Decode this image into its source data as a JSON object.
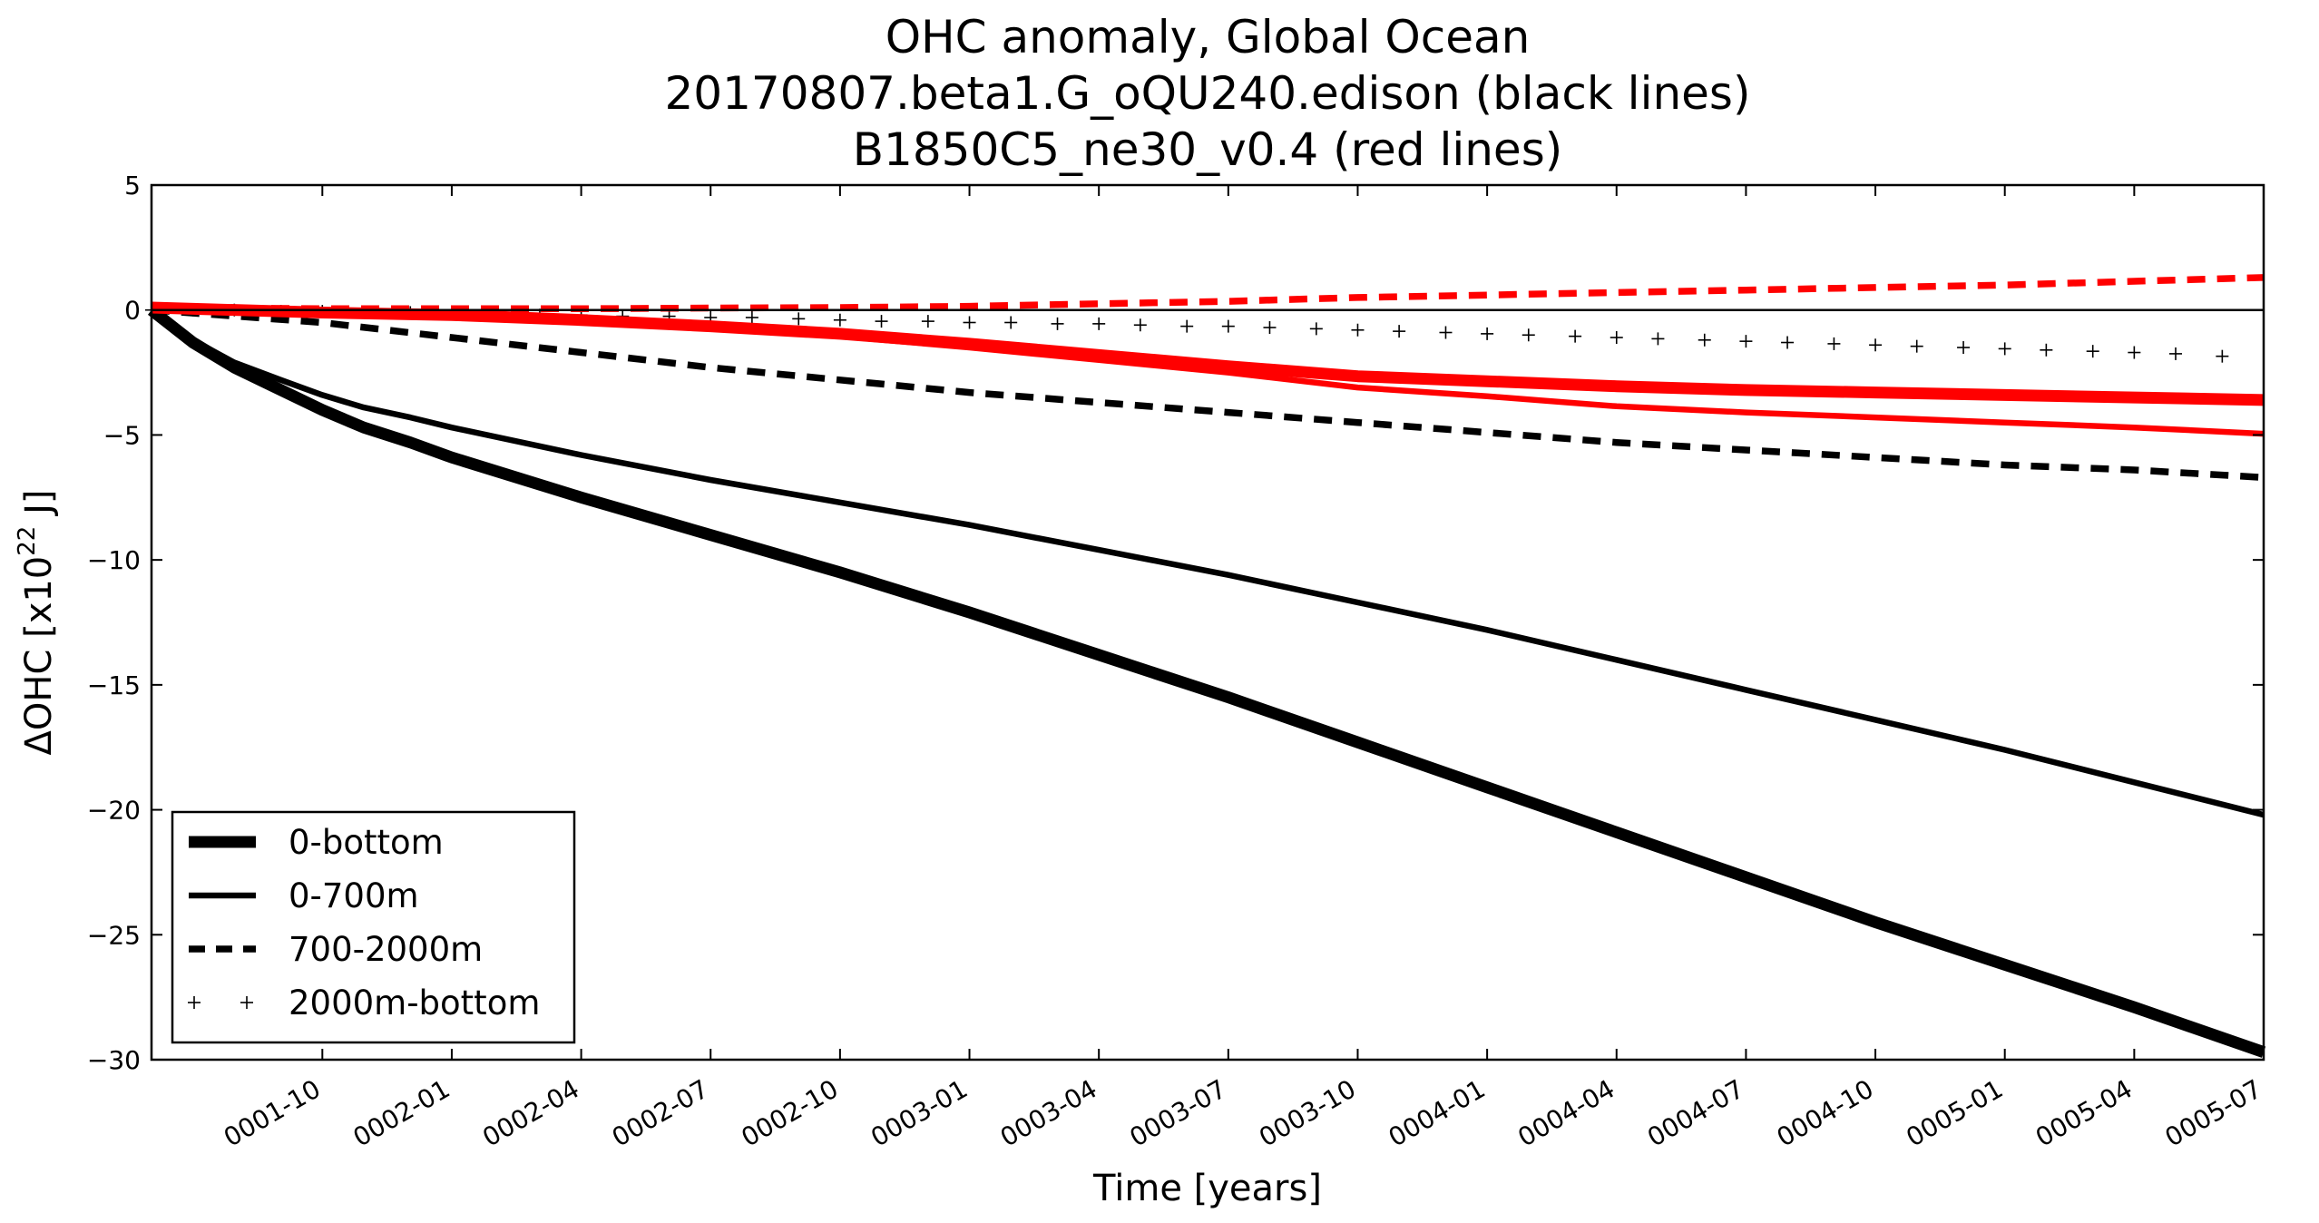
{
  "chart_data": {
    "type": "line",
    "title": [
      "OHC anomaly, Global Ocean",
      "20170807.beta1.G_oQU240.edison (black lines)",
      "B1850C5_ne30_v0.4 (red lines)"
    ],
    "xlabel": "Time [years]",
    "ylabel_main": "ΔOHC  [x10",
    "ylabel_exp": "22",
    "ylabel_unit": " J]",
    "x_start": "0001-06",
    "x_end": "0005-07",
    "xlim": [
      1.42,
      5.5
    ],
    "ylim": [
      -30,
      5
    ],
    "yticks": [
      5,
      0,
      -5,
      -10,
      -15,
      -20,
      -25,
      -30
    ],
    "ytick_labels": [
      "5",
      "0",
      "−5",
      "−10",
      "−15",
      "−20",
      "−25",
      "−30"
    ],
    "xticks": [
      1.75,
      2.0,
      2.25,
      2.5,
      2.75,
      3.0,
      3.25,
      3.5,
      3.75,
      4.0,
      4.25,
      4.5,
      4.75,
      5.0,
      5.25,
      5.5
    ],
    "xtick_labels": [
      "0001-10",
      "0002-01",
      "0002-04",
      "0002-07",
      "0002-10",
      "0003-01",
      "0003-04",
      "0003-07",
      "0003-10",
      "0004-01",
      "0004-04",
      "0004-07",
      "0004-10",
      "0005-01",
      "0005-04",
      "0005-07"
    ],
    "reference_line_y": 0,
    "grid": false,
    "legend": {
      "placement": "bottom-left",
      "entries": [
        {
          "label": "0-bottom",
          "style": "thick-solid"
        },
        {
          "label": "0-700m",
          "style": "solid"
        },
        {
          "label": "700-2000m",
          "style": "dashed"
        },
        {
          "label": "2000m-bottom",
          "style": "plus"
        }
      ]
    },
    "series": [
      {
        "group": "black",
        "color": "#000000",
        "style": "thick-solid",
        "x": [
          1.42,
          1.5,
          1.58,
          1.67,
          1.75,
          1.83,
          1.92,
          2.0,
          2.25,
          2.5,
          2.75,
          3.0,
          3.25,
          3.5,
          3.75,
          4.0,
          4.25,
          4.5,
          4.75,
          5.0,
          5.25,
          5.5
        ],
        "y": [
          0,
          -1.3,
          -2.3,
          -3.2,
          -4.0,
          -4.7,
          -5.3,
          -5.9,
          -7.5,
          -9.0,
          -10.5,
          -12.1,
          -13.8,
          -15.5,
          -17.3,
          -19.1,
          -20.9,
          -22.7,
          -24.5,
          -26.2,
          -27.9,
          -29.7
        ]
      },
      {
        "group": "black",
        "color": "#000000",
        "style": "solid",
        "x": [
          1.42,
          1.5,
          1.58,
          1.67,
          1.75,
          1.83,
          1.92,
          2.0,
          2.25,
          2.5,
          2.75,
          3.0,
          3.25,
          3.5,
          3.75,
          4.0,
          4.25,
          4.5,
          4.75,
          5.0,
          5.25,
          5.5
        ],
        "y": [
          0,
          -1.2,
          -2.1,
          -2.8,
          -3.4,
          -3.9,
          -4.3,
          -4.7,
          -5.8,
          -6.8,
          -7.7,
          -8.6,
          -9.6,
          -10.6,
          -11.7,
          -12.8,
          -14.0,
          -15.2,
          -16.4,
          -17.6,
          -18.9,
          -20.2
        ]
      },
      {
        "group": "black",
        "color": "#000000",
        "style": "dashed",
        "x": [
          1.42,
          1.75,
          2.0,
          2.25,
          2.5,
          2.75,
          3.0,
          3.25,
          3.5,
          3.75,
          4.0,
          4.25,
          4.5,
          4.75,
          5.0,
          5.25,
          5.5
        ],
        "y": [
          0,
          -0.5,
          -1.1,
          -1.7,
          -2.3,
          -2.8,
          -3.3,
          -3.7,
          -4.1,
          -4.5,
          -4.9,
          -5.3,
          -5.6,
          -5.9,
          -6.2,
          -6.4,
          -6.7
        ]
      },
      {
        "group": "black",
        "color": "#000000",
        "style": "plus",
        "x": [
          1.42,
          1.5,
          1.58,
          1.67,
          1.75,
          1.83,
          1.92,
          2.0,
          2.08,
          2.17,
          2.25,
          2.33,
          2.42,
          2.5,
          2.58,
          2.67,
          2.75,
          2.83,
          2.92,
          3.0,
          3.08,
          3.17,
          3.25,
          3.33,
          3.42,
          3.5,
          3.58,
          3.67,
          3.75,
          3.83,
          3.92,
          4.0,
          4.08,
          4.17,
          4.25,
          4.33,
          4.42,
          4.5,
          4.58,
          4.67,
          4.75,
          4.83,
          4.92,
          5.0,
          5.08,
          5.17,
          5.25,
          5.33,
          5.42
        ],
        "y": [
          0,
          0,
          0,
          -0.05,
          -0.05,
          -0.1,
          -0.1,
          -0.15,
          -0.15,
          -0.2,
          -0.2,
          -0.25,
          -0.25,
          -0.3,
          -0.3,
          -0.35,
          -0.4,
          -0.45,
          -0.45,
          -0.5,
          -0.5,
          -0.55,
          -0.55,
          -0.6,
          -0.65,
          -0.65,
          -0.7,
          -0.75,
          -0.8,
          -0.85,
          -0.9,
          -0.95,
          -1.0,
          -1.05,
          -1.1,
          -1.15,
          -1.2,
          -1.25,
          -1.3,
          -1.35,
          -1.4,
          -1.45,
          -1.5,
          -1.55,
          -1.6,
          -1.65,
          -1.7,
          -1.75,
          -1.85
        ]
      },
      {
        "group": "red",
        "color": "#ff0000",
        "style": "thick-solid",
        "x": [
          1.42,
          1.75,
          2.0,
          2.25,
          2.5,
          2.75,
          3.0,
          3.25,
          3.5,
          3.75,
          4.0,
          4.25,
          4.5,
          4.75,
          5.0,
          5.25,
          5.5
        ],
        "y": [
          0.1,
          -0.1,
          -0.2,
          -0.4,
          -0.65,
          -0.95,
          -1.35,
          -1.8,
          -2.25,
          -2.65,
          -2.85,
          -3.05,
          -3.2,
          -3.3,
          -3.4,
          -3.5,
          -3.6
        ]
      },
      {
        "group": "red",
        "color": "#ff0000",
        "style": "solid",
        "x": [
          1.42,
          1.75,
          2.0,
          2.25,
          2.5,
          2.75,
          3.0,
          3.25,
          3.5,
          3.75,
          4.0,
          4.25,
          4.5,
          4.75,
          5.0,
          5.25,
          5.5
        ],
        "y": [
          0.1,
          -0.05,
          -0.2,
          -0.4,
          -0.7,
          -1.05,
          -1.5,
          -2.0,
          -2.5,
          -3.1,
          -3.45,
          -3.85,
          -4.1,
          -4.3,
          -4.5,
          -4.7,
          -4.95
        ]
      },
      {
        "group": "red",
        "color": "#ff0000",
        "style": "dashed",
        "x": [
          1.42,
          1.75,
          2.0,
          2.25,
          2.5,
          2.75,
          3.0,
          3.25,
          3.5,
          3.75,
          4.0,
          4.25,
          4.5,
          4.75,
          5.0,
          5.25,
          5.5
        ],
        "y": [
          0.1,
          0.05,
          0.05,
          0.05,
          0.08,
          0.1,
          0.15,
          0.25,
          0.35,
          0.5,
          0.6,
          0.7,
          0.8,
          0.9,
          1.0,
          1.15,
          1.3
        ]
      }
    ]
  }
}
